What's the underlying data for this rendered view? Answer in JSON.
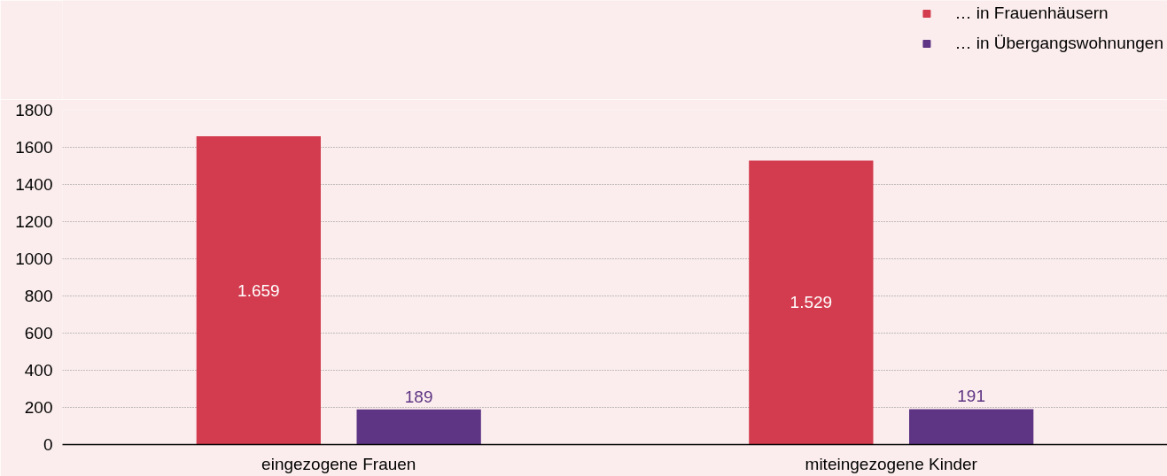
{
  "chart_data": {
    "type": "bar",
    "categories": [
      "eingezogene Frauen",
      "miteingezogene Kinder"
    ],
    "series": [
      {
        "name": "… in Frauenhäusern",
        "color": "#d33c4e",
        "values": [
          1659,
          1529
        ],
        "value_labels": [
          "1.659",
          "1.529"
        ]
      },
      {
        "name": "… in Übergangswohnungen",
        "color": "#5e3484",
        "values": [
          189,
          191
        ],
        "value_labels": [
          "189",
          "191"
        ]
      }
    ],
    "ylim": [
      0,
      1800
    ],
    "yticks": [
      0,
      200,
      400,
      600,
      800,
      1000,
      1200,
      1400,
      1600,
      1800
    ],
    "grid": "y",
    "legend": "top right"
  }
}
